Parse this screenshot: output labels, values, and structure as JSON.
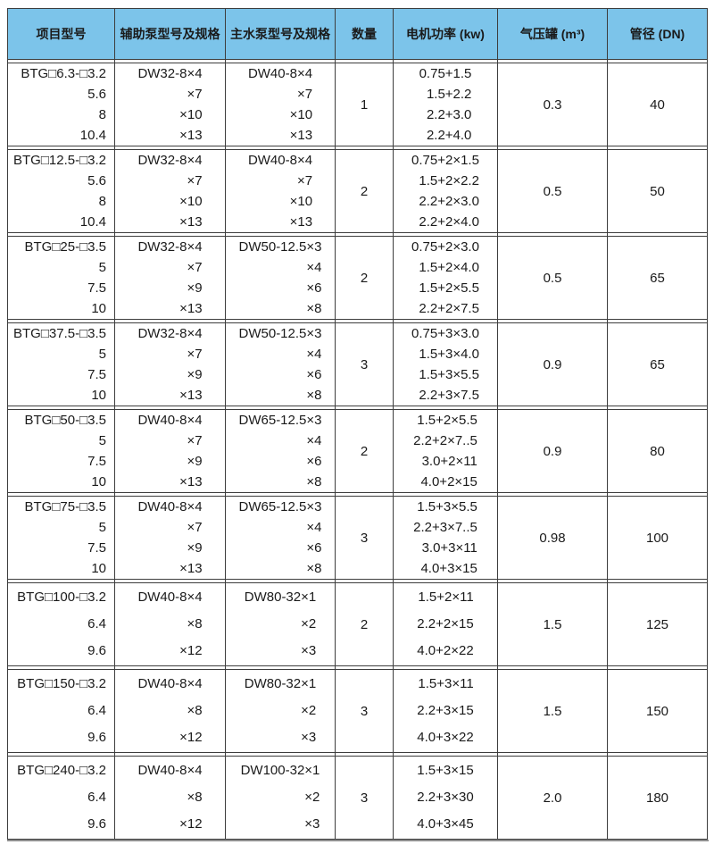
{
  "colors": {
    "header_bg": "#7cc4ea",
    "border": "#3d3d3d",
    "text": "#1a1a1a"
  },
  "table": {
    "columns": [
      "项目型号",
      "辅助泵型号及规格",
      "主水泵型号及规格",
      "数量",
      "电机功率 (kw)",
      "气压罐 (m³)",
      "管径 (DN)"
    ],
    "rows": [
      {
        "model": [
          "BTG□6.3-□3.2",
          "5.6",
          "8",
          "10.4"
        ],
        "aux_pump": [
          "DW32-8×4",
          "×7",
          "×10",
          "×13"
        ],
        "main_pump": [
          "DW40-8×4",
          "×7",
          "×10",
          "×13"
        ],
        "quantity": "1",
        "motor_power": [
          "0.75+1.5",
          "1.5+2.2",
          "2.2+3.0",
          "2.2+4.0"
        ],
        "tank": "0.3",
        "dn": "40"
      },
      {
        "model": [
          "BTG□12.5-□3.2",
          "5.6",
          "8",
          "10.4"
        ],
        "aux_pump": [
          "DW32-8×4",
          "×7",
          "×10",
          "×13"
        ],
        "main_pump": [
          "DW40-8×4",
          "×7",
          "×10",
          "×13"
        ],
        "quantity": "2",
        "motor_power": [
          "0.75+2×1.5",
          "1.5+2×2.2",
          "2.2+2×3.0",
          "2.2+2×4.0"
        ],
        "tank": "0.5",
        "dn": "50"
      },
      {
        "model": [
          "BTG□25-□3.5",
          "5",
          "7.5",
          "10"
        ],
        "aux_pump": [
          "DW32-8×4",
          "×7",
          "×9",
          "×13"
        ],
        "main_pump": [
          "DW50-12.5×3",
          "×4",
          "×6",
          "×8"
        ],
        "quantity": "2",
        "motor_power": [
          "0.75+2×3.0",
          "1.5+2×4.0",
          "1.5+2×5.5",
          "2.2+2×7.5"
        ],
        "tank": "0.5",
        "dn": "65"
      },
      {
        "model": [
          "BTG□37.5-□3.5",
          "5",
          "7.5",
          "10"
        ],
        "aux_pump": [
          "DW32-8×4",
          "×7",
          "×9",
          "×13"
        ],
        "main_pump": [
          "DW50-12.5×3",
          "×4",
          "×6",
          "×8"
        ],
        "quantity": "3",
        "motor_power": [
          "0.75+3×3.0",
          "1.5+3×4.0",
          "1.5+3×5.5",
          "2.2+3×7.5"
        ],
        "tank": "0.9",
        "dn": "65"
      },
      {
        "model": [
          "BTG□50-□3.5",
          "5",
          "7.5",
          "10"
        ],
        "aux_pump": [
          "DW40-8×4",
          "×7",
          "×9",
          "×13"
        ],
        "main_pump": [
          "DW65-12.5×3",
          "×4",
          "×6",
          "×8"
        ],
        "quantity": "2",
        "motor_power": [
          "1.5+2×5.5",
          "2.2+2×7..5",
          "3.0+2×11",
          "4.0+2×15"
        ],
        "tank": "0.9",
        "dn": "80"
      },
      {
        "model": [
          "BTG□75-□3.5",
          "5",
          "7.5",
          "10"
        ],
        "aux_pump": [
          "DW40-8×4",
          "×7",
          "×9",
          "×13"
        ],
        "main_pump": [
          "DW65-12.5×3",
          "×4",
          "×6",
          "×8"
        ],
        "quantity": "3",
        "motor_power": [
          "1.5+3×5.5",
          "2.2+3×7..5",
          "3.0+3×11",
          "4.0+3×15"
        ],
        "tank": "0.98",
        "dn": "100"
      },
      {
        "model": [
          "BTG□100-□3.2",
          "6.4",
          "9.6"
        ],
        "aux_pump": [
          "DW40-8×4",
          "×8",
          "×12"
        ],
        "main_pump": [
          "DW80-32×1",
          "×2",
          "×3"
        ],
        "quantity": "2",
        "motor_power": [
          "1.5+2×11",
          "2.2+2×15",
          "4.0+2×22"
        ],
        "tank": "1.5",
        "dn": "125"
      },
      {
        "model": [
          "BTG□150-□3.2",
          "6.4",
          "9.6"
        ],
        "aux_pump": [
          "DW40-8×4",
          "×8",
          "×12"
        ],
        "main_pump": [
          "DW80-32×1",
          "×2",
          "×3"
        ],
        "quantity": "3",
        "motor_power": [
          "1.5+3×11",
          "2.2+3×15",
          "4.0+3×22"
        ],
        "tank": "1.5",
        "dn": "150"
      },
      {
        "model": [
          "BTG□240-□3.2",
          "6.4",
          "9.6"
        ],
        "aux_pump": [
          "DW40-8×4",
          "×8",
          "×12"
        ],
        "main_pump": [
          "DW100-32×1",
          "×2",
          "×3"
        ],
        "quantity": "3",
        "motor_power": [
          "1.5+3×15",
          "2.2+3×30",
          "4.0+3×45"
        ],
        "tank": "2.0",
        "dn": "180"
      }
    ]
  }
}
